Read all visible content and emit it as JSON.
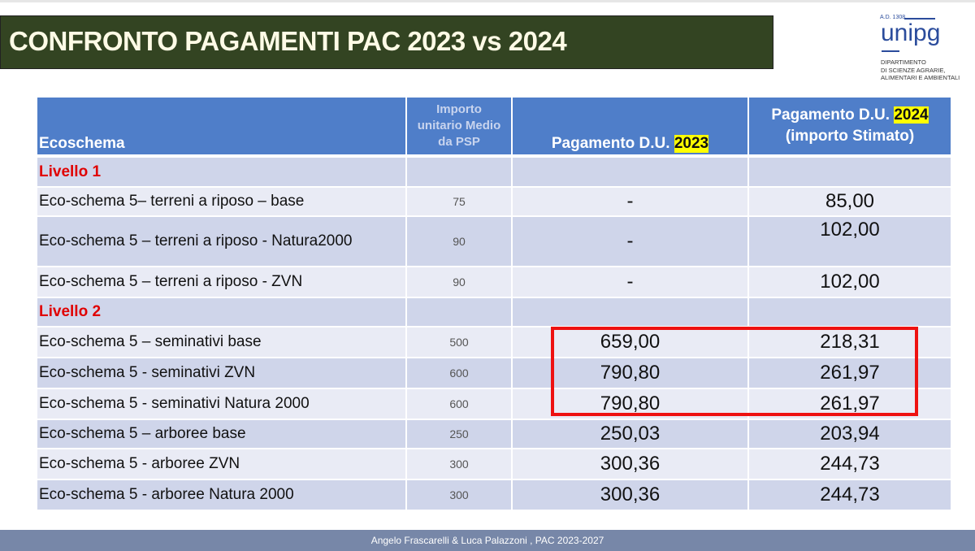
{
  "title": "CONFRONTO PAGAMENTI PAC 2023 vs 2024",
  "logo": {
    "ad": "A.D. 1308",
    "name": "unipg",
    "dept": [
      "DIPARTIMENTO",
      "DI SCIENZE AGRARIE,",
      "ALIMENTARI E AMBIENTALI"
    ]
  },
  "table": {
    "headers": {
      "col1": "Ecoschema",
      "col2": [
        "Importo",
        "unitario Medio",
        "da PSP"
      ],
      "col3_prefix": "Pagamento D.U. ",
      "col3_year": "2023",
      "col4_prefix": "Pagamento D.U. ",
      "col4_year": "2024",
      "col4_sub": "(importo Stimato)"
    },
    "rows": [
      {
        "label": "Livello 1",
        "level": true
      },
      {
        "label": "Eco-schema 5– terreni a riposo – base",
        "psp": "75",
        "p2023": "-",
        "p2024": "85,00"
      },
      {
        "label": "Eco-schema 5 – terreni a riposo - Natura2000",
        "psp": "90",
        "p2023": "-",
        "p2024": "102,00"
      },
      {
        "label": "Eco-schema 5 – terreni a riposo - ZVN",
        "psp": "90",
        "p2023": "-",
        "p2024": "102,00"
      },
      {
        "label": "Livello 2",
        "level": true
      },
      {
        "label": "Eco-schema 5 – seminativi base",
        "psp": "500",
        "p2023": "659,00",
        "p2024": "218,31"
      },
      {
        "label": "Eco-schema 5 - seminativi ZVN",
        "psp": "600",
        "p2023": "790,80",
        "p2024": "261,97"
      },
      {
        "label": "Eco-schema 5 - seminativi Natura 2000",
        "psp": "600",
        "p2023": "790,80",
        "p2024": "261,97"
      },
      {
        "label": "Eco-schema 5 – arboree base",
        "psp": "250",
        "p2023": "250,03",
        "p2024": "203,94"
      },
      {
        "label": "Eco-schema 5 - arboree ZVN",
        "psp": "300",
        "p2023": "300,36",
        "p2024": "244,73"
      },
      {
        "label": "Eco-schema 5 - arboree Natura 2000",
        "psp": "300",
        "p2023": "300,36",
        "p2024": "244,73"
      }
    ]
  },
  "colors": {
    "header": "#4f7ec9",
    "title_bg": "#334422",
    "highlight": "#ffff00",
    "red_box": "#ee1111",
    "level_text": "#e00000"
  },
  "footer": "Angelo Frascarelli & Luca Palazzoni , PAC 2023-2027"
}
